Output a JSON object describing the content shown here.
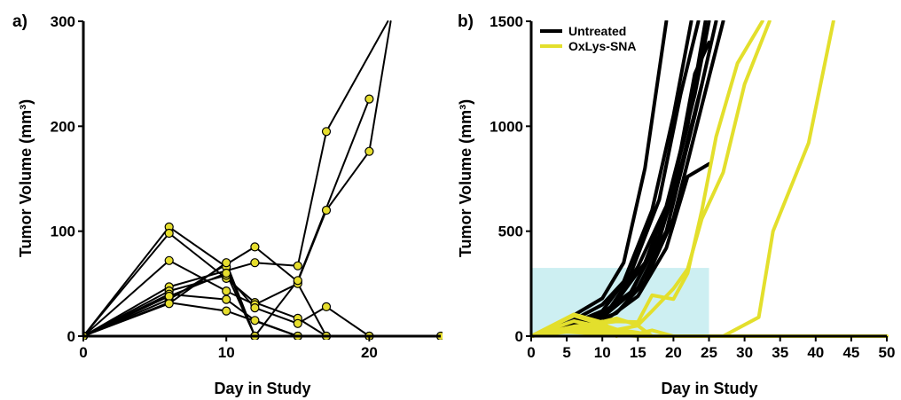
{
  "colors": {
    "untreated": "#000000",
    "treated": "#e3df2c",
    "marker_fill": "#e6de2e",
    "shade": "#cdeff2"
  },
  "chart_data": [
    {
      "panel_label": "a)",
      "type": "line",
      "xlabel": "Day in Study",
      "ylabel": "Tumor Volume (mm³)",
      "xlim": [
        0,
        25
      ],
      "ylim": [
        0,
        300
      ],
      "xticks": [
        0,
        10,
        20
      ],
      "yticks": [
        0,
        100,
        200,
        300
      ],
      "markers": true,
      "series": [
        {
          "x": [
            0,
            6,
            12,
            15,
            17,
            21.3
          ],
          "y": [
            0,
            47,
            70,
            67,
            195,
            300
          ]
        },
        {
          "x": [
            0,
            6,
            12,
            15,
            17,
            20,
            21.5
          ],
          "y": [
            0,
            35,
            85,
            52,
            120,
            176,
            300
          ]
        },
        {
          "x": [
            0,
            6,
            10,
            12
          ],
          "y": [
            0,
            104,
            66,
            0
          ]
        },
        {
          "x": [
            0,
            6,
            10,
            12,
            15,
            17
          ],
          "y": [
            0,
            98,
            55,
            32,
            17,
            0
          ]
        },
        {
          "x": [
            0,
            6,
            10,
            12,
            15,
            17
          ],
          "y": [
            0,
            72,
            43,
            30,
            50,
            0
          ]
        },
        {
          "x": [
            0,
            6,
            10,
            12,
            15,
            17,
            20
          ],
          "y": [
            0,
            43,
            58,
            27,
            12,
            28,
            0
          ]
        },
        {
          "x": [
            0,
            6,
            10,
            12,
            15
          ],
          "y": [
            0,
            40,
            35,
            15,
            0
          ]
        },
        {
          "x": [
            0,
            6,
            10,
            15,
            20,
            25
          ],
          "y": [
            0,
            32,
            24,
            0,
            0,
            0
          ]
        },
        {
          "x": [
            0,
            6,
            10,
            12,
            15,
            20
          ],
          "y": [
            0,
            38,
            60,
            0,
            53,
            226
          ]
        },
        {
          "x": [
            0,
            6,
            10,
            12
          ],
          "y": [
            0,
            31,
            70,
            0
          ]
        }
      ]
    },
    {
      "panel_label": "b)",
      "type": "line",
      "xlabel": "Day in Study",
      "ylabel": "Tumor Volume (mm³)",
      "xlim": [
        0,
        50
      ],
      "ylim": [
        0,
        1500
      ],
      "xticks": [
        0,
        5,
        10,
        15,
        20,
        25,
        30,
        35,
        40,
        45,
        50
      ],
      "yticks": [
        0,
        500,
        1000,
        1500
      ],
      "shaded_region": {
        "x": [
          0,
          25
        ],
        "y": [
          0,
          325
        ]
      },
      "legend": {
        "position": "top-left"
      },
      "series": [
        {
          "name": "Untreated",
          "group": "untreated",
          "x": [
            0,
            5,
            10,
            13,
            16,
            19
          ],
          "y": [
            0,
            80,
            180,
            350,
            800,
            1500
          ]
        },
        {
          "name": "",
          "group": "untreated",
          "x": [
            0,
            5,
            10,
            13,
            17,
            20,
            22.5
          ],
          "y": [
            0,
            60,
            150,
            260,
            600,
            1050,
            1500
          ]
        },
        {
          "name": "",
          "group": "untreated",
          "x": [
            0,
            5,
            10,
            14,
            18,
            21,
            23.5
          ],
          "y": [
            0,
            50,
            120,
            300,
            650,
            1150,
            1500
          ]
        },
        {
          "name": "",
          "group": "untreated",
          "x": [
            0,
            5,
            10,
            14,
            18,
            22,
            24.5
          ],
          "y": [
            0,
            40,
            100,
            200,
            480,
            1000,
            1500
          ]
        },
        {
          "name": "",
          "group": "untreated",
          "x": [
            0,
            6,
            11,
            15,
            19,
            23,
            25
          ],
          "y": [
            0,
            45,
            130,
            330,
            620,
            1150,
            1500
          ]
        },
        {
          "name": "",
          "group": "untreated",
          "x": [
            0,
            5,
            10,
            15,
            19,
            23,
            26
          ],
          "y": [
            0,
            35,
            90,
            230,
            500,
            1050,
            1500
          ]
        },
        {
          "name": "",
          "group": "untreated",
          "x": [
            0,
            6,
            12,
            16,
            20,
            24,
            27
          ],
          "y": [
            0,
            30,
            110,
            260,
            560,
            1100,
            1500
          ]
        },
        {
          "name": "",
          "group": "untreated",
          "x": [
            0,
            5,
            11,
            16,
            20,
            23,
            25
          ],
          "y": [
            0,
            40,
            120,
            350,
            700,
            1250,
            1400
          ]
        },
        {
          "name": "",
          "group": "untreated",
          "x": [
            0,
            6,
            11,
            15,
            19,
            22,
            25
          ],
          "y": [
            0,
            35,
            90,
            190,
            420,
            760,
            820
          ]
        },
        {
          "name": "",
          "group": "untreated",
          "x": [
            0,
            5,
            10,
            14,
            18,
            21,
            24
          ],
          "y": [
            0,
            40,
            110,
            210,
            460,
            800,
            1200
          ]
        },
        {
          "name": "OxLys-SNA",
          "group": "treated",
          "x": [
            0,
            6,
            12,
            15,
            17,
            20,
            22,
            24,
            26,
            29,
            32.5
          ],
          "y": [
            0,
            47,
            70,
            67,
            195,
            176,
            300,
            600,
            950,
            1300,
            1500
          ]
        },
        {
          "name": "",
          "group": "treated",
          "x": [
            0,
            6,
            12,
            15,
            17,
            20,
            22,
            24,
            27,
            30,
            33.5
          ],
          "y": [
            0,
            35,
            85,
            52,
            120,
            226,
            320,
            560,
            780,
            1200,
            1500
          ]
        },
        {
          "name": "",
          "group": "treated",
          "x": [
            0,
            6,
            10,
            12
          ],
          "y": [
            0,
            104,
            66,
            0
          ]
        },
        {
          "name": "",
          "group": "treated",
          "x": [
            0,
            6,
            10,
            12,
            15,
            17
          ],
          "y": [
            0,
            98,
            55,
            32,
            17,
            0
          ]
        },
        {
          "name": "",
          "group": "treated",
          "x": [
            0,
            6,
            10,
            12,
            15,
            17
          ],
          "y": [
            0,
            72,
            43,
            30,
            50,
            0
          ]
        },
        {
          "name": "",
          "group": "treated",
          "x": [
            0,
            6,
            10,
            12,
            15,
            17,
            20
          ],
          "y": [
            0,
            43,
            58,
            27,
            12,
            28,
            0
          ]
        },
        {
          "name": "",
          "group": "treated",
          "x": [
            0,
            6,
            10,
            12,
            15
          ],
          "y": [
            0,
            40,
            35,
            15,
            0
          ]
        },
        {
          "name": "",
          "group": "treated",
          "x": [
            0,
            6,
            10,
            15,
            50
          ],
          "y": [
            0,
            32,
            24,
            0,
            0
          ]
        },
        {
          "name": "",
          "group": "treated",
          "x": [
            0,
            5,
            10,
            15,
            20,
            27,
            32,
            34,
            39,
            42.5
          ],
          "y": [
            0,
            20,
            10,
            0,
            0,
            0,
            90,
            500,
            920,
            1500
          ]
        },
        {
          "name": "",
          "group": "treated",
          "x": [
            0,
            6,
            10,
            12
          ],
          "y": [
            0,
            31,
            70,
            0
          ]
        }
      ]
    }
  ]
}
